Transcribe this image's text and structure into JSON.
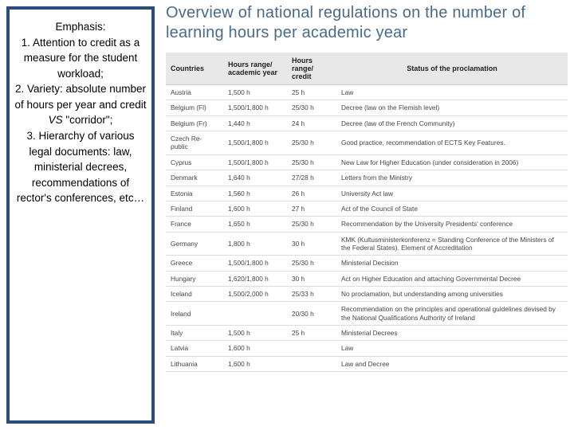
{
  "sidebar": {
    "heading": "Emphasis:",
    "items": [
      "1.  Attention to credit as a measure for the student workload;",
      "2.  Variety: absolute number of hours per year and credit ",
      "3. Hierarchy of various legal documents: law, ministerial decrees, recommendations of rector's conferences, etc…"
    ],
    "vs_italic": "VS",
    "corridor": " \"corridor\";"
  },
  "main": {
    "title": "Overview of national regulations on the number of learning hours per academic year",
    "columns": [
      "Countries",
      "Hours range/ academic year",
      "Hours range/ credit",
      "Status of the proclamation"
    ],
    "rows": [
      [
        "Austria",
        "1,500 h",
        "25 h",
        "Law"
      ],
      [
        "Belgium (Fl)",
        "1,500/1,800 h",
        "25/30 h",
        "Decree (law on the Flemish level)"
      ],
      [
        "Belgium (Fr)",
        "1,440 h",
        "24 h",
        "Decree (law of the French Community)"
      ],
      [
        "Czech Re-public",
        "1,500/1,800 h",
        "25/30 h",
        "Good practice, recommendation of ECTS Key Features."
      ],
      [
        "Cyprus",
        "1,500/1,800 h",
        "25/30 h",
        "New Law for Higher Education (under consideration in 2006)"
      ],
      [
        "Denmark",
        "1,640 h",
        "27/28 h",
        "Letters from the Ministry"
      ],
      [
        "Estonia",
        "1,560 h",
        "26 h",
        "University Act law"
      ],
      [
        "Finland",
        "1,600 h",
        "27 h",
        "Act of the Council of State"
      ],
      [
        "France",
        "1,650 h",
        "25/30 h",
        "Recommendation by the University Presidents' conference"
      ],
      [
        "Germany",
        "1,800 h",
        "30 h",
        "KMK (Kultusministerkonferenz = Standing Conference of the Ministers of the Federal States). Element of Accreditation"
      ],
      [
        "Greece",
        "1,500/1,800 h",
        "25/30 h",
        "Ministerial Decision"
      ],
      [
        "Hungary",
        "1,620/1,800 h",
        "30 h",
        "Act on Higher Education and attaching Governmental Decree"
      ],
      [
        "Iceland",
        "1,500/2,000 h",
        "25/33 h",
        "No proclamation, but understanding among universities"
      ],
      [
        "Ireland",
        "",
        "20/30 h",
        "Recommendation on the principles and operational guidelines devised by the National Qualifications Authority of Ireland"
      ],
      [
        "Italy",
        "1,500 h",
        "25 h",
        "Ministerial Decrees"
      ],
      [
        "Latvia",
        "1,600 h",
        "",
        "Law"
      ],
      [
        "Lithuania",
        "1,600 h",
        "",
        "Law and Decree"
      ]
    ]
  }
}
